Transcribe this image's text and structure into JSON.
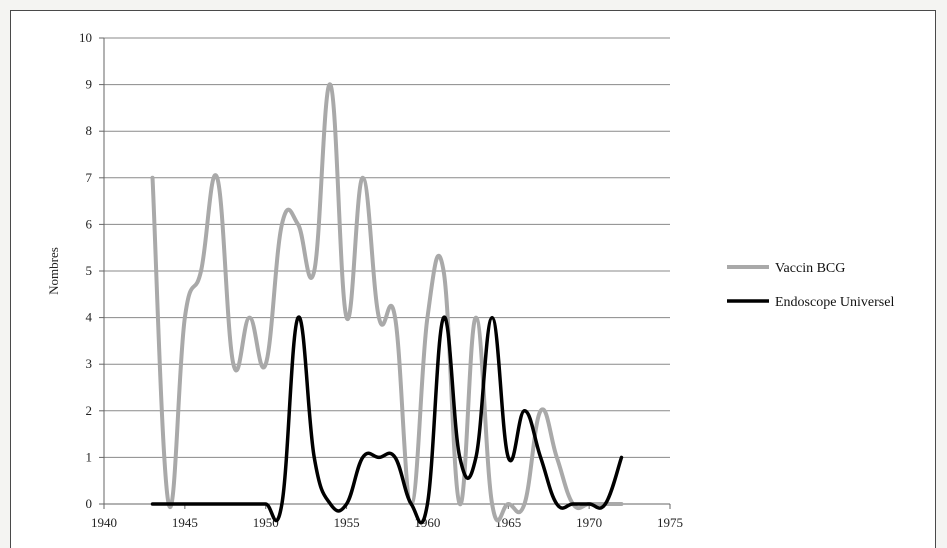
{
  "chart_data": {
    "type": "line",
    "title": "",
    "xlabel": "",
    "ylabel": "Nombres",
    "xlim": [
      1940,
      1975
    ],
    "ylim": [
      0,
      10
    ],
    "x_ticks": [
      "1940",
      "1945",
      "1950",
      "1955",
      "1960",
      "1965",
      "1970",
      "1975"
    ],
    "y_ticks": [
      "0",
      "1",
      "2",
      "3",
      "4",
      "5",
      "6",
      "7",
      "8",
      "9",
      "10"
    ],
    "grid": "horizontal",
    "legend_position": "right",
    "series": [
      {
        "name": "Vaccin BCG",
        "color": "#a9a9a9",
        "x": [
          1943,
          1944,
          1945,
          1946,
          1947,
          1948,
          1949,
          1950,
          1951,
          1952,
          1953,
          1954,
          1955,
          1956,
          1957,
          1958,
          1959,
          1960,
          1961,
          1962,
          1963,
          1964,
          1965,
          1966,
          1967,
          1968,
          1969,
          1970,
          1971,
          1972
        ],
        "values": [
          7,
          0,
          4,
          5,
          7,
          3,
          4,
          3,
          6,
          6,
          5,
          9,
          4,
          7,
          4,
          4,
          0,
          4,
          5,
          0,
          4,
          0,
          0,
          0,
          2,
          1,
          0,
          0,
          0,
          0
        ]
      },
      {
        "name": "Endoscope Universel",
        "color": "#000000",
        "x": [
          1943,
          1944,
          1945,
          1946,
          1947,
          1948,
          1949,
          1950,
          1951,
          1952,
          1953,
          1954,
          1955,
          1956,
          1957,
          1958,
          1959,
          1960,
          1961,
          1962,
          1963,
          1964,
          1965,
          1966,
          1967,
          1968,
          1969,
          1970,
          1971,
          1972
        ],
        "values": [
          0,
          0,
          0,
          0,
          0,
          0,
          0,
          0,
          0,
          4,
          1,
          0,
          0,
          1,
          1,
          1,
          0,
          0,
          4,
          1,
          1,
          4,
          1,
          2,
          1,
          0,
          0,
          0,
          0,
          1
        ]
      }
    ]
  }
}
